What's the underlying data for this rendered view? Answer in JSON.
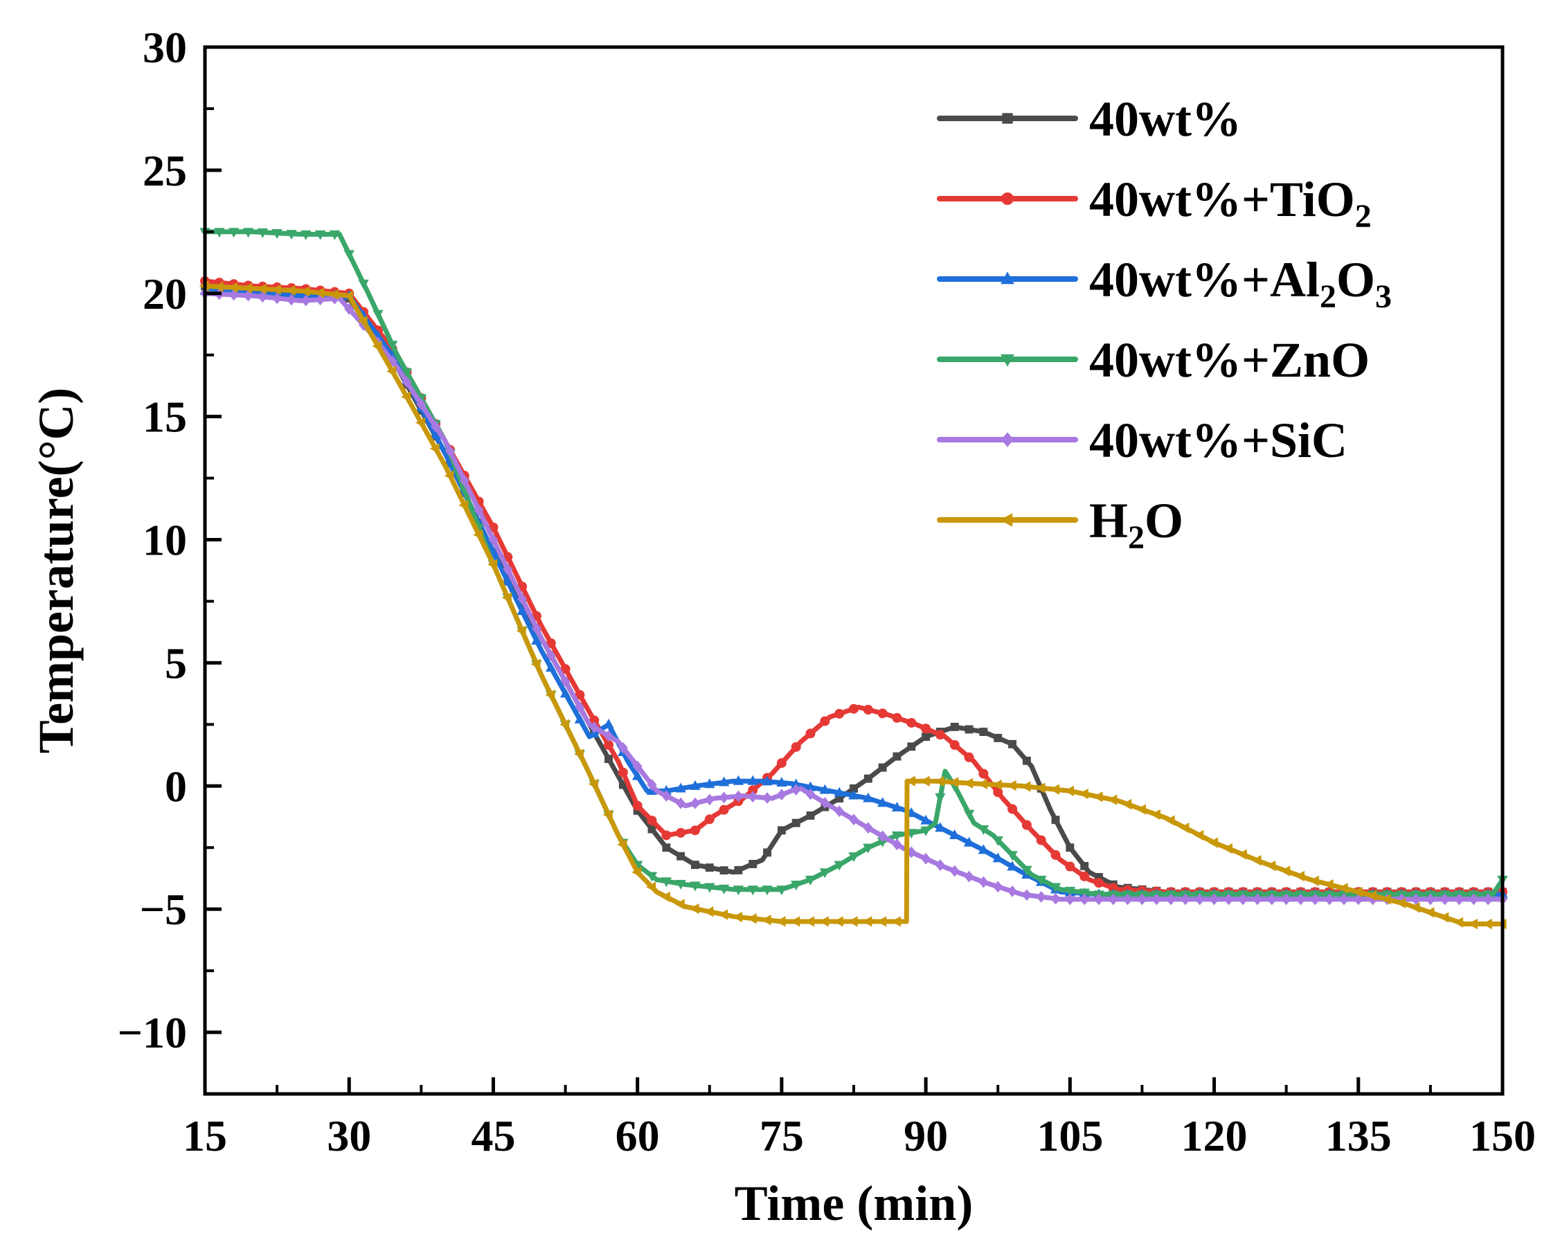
{
  "chart_data": {
    "type": "line",
    "title": "",
    "xlabel": "Time (min)",
    "ylabel": "Temperature(°C)",
    "xlim": [
      15,
      150
    ],
    "ylim": [
      -12.5,
      30
    ],
    "xticks": [
      15,
      30,
      45,
      60,
      75,
      90,
      105,
      120,
      135,
      150
    ],
    "yticks": [
      -10,
      -5,
      0,
      5,
      10,
      15,
      20,
      25,
      30
    ],
    "ytick_labels": [
      "−10",
      "−5",
      "0",
      "5",
      "10",
      "15",
      "20",
      "25",
      "30"
    ],
    "grid": false,
    "legend_position": "top-right",
    "series": [
      {
        "name": "40wt%",
        "label_main": "40wt%",
        "label_parts": [
          [
            "40wt%",
            ""
          ]
        ],
        "color": "#4a4a4a",
        "marker": "square",
        "points": [
          [
            15,
            20.3
          ],
          [
            20,
            20.2
          ],
          [
            25,
            20.0
          ],
          [
            30,
            19.8
          ],
          [
            35,
            17.0
          ],
          [
            40,
            13.5
          ],
          [
            45,
            9.5
          ],
          [
            50,
            6.0
          ],
          [
            55,
            2.5
          ],
          [
            60,
            -1.0
          ],
          [
            63,
            -2.5
          ],
          [
            66,
            -3.2
          ],
          [
            70,
            -3.5
          ],
          [
            73,
            -3.0
          ],
          [
            75,
            -1.8
          ],
          [
            78,
            -1.2
          ],
          [
            81,
            -0.5
          ],
          [
            84,
            0.3
          ],
          [
            87,
            1.2
          ],
          [
            90,
            2.0
          ],
          [
            93,
            2.4
          ],
          [
            96,
            2.2
          ],
          [
            99,
            1.7
          ],
          [
            101,
            0.8
          ],
          [
            103,
            -1.0
          ],
          [
            105,
            -2.5
          ],
          [
            107,
            -3.5
          ],
          [
            110,
            -4.1
          ],
          [
            115,
            -4.3
          ],
          [
            120,
            -4.3
          ],
          [
            130,
            -4.3
          ],
          [
            140,
            -4.3
          ],
          [
            150,
            -4.3
          ]
        ]
      },
      {
        "name": "40wt%+TiO2",
        "label_main": "40wt%+TiO",
        "label_parts": [
          [
            "40wt%+TiO",
            ""
          ],
          [
            "2",
            "sub"
          ]
        ],
        "color": "#e53935",
        "marker": "circle",
        "points": [
          [
            15,
            20.5
          ],
          [
            20,
            20.3
          ],
          [
            25,
            20.2
          ],
          [
            30,
            20.0
          ],
          [
            35,
            17.5
          ],
          [
            40,
            14.0
          ],
          [
            45,
            10.5
          ],
          [
            50,
            6.5
          ],
          [
            55,
            3.0
          ],
          [
            58,
            1.0
          ],
          [
            60,
            -0.8
          ],
          [
            63,
            -2.0
          ],
          [
            66,
            -1.8
          ],
          [
            68,
            -1.2
          ],
          [
            71,
            -0.5
          ],
          [
            74,
            0.5
          ],
          [
            77,
            1.8
          ],
          [
            80,
            2.8
          ],
          [
            83,
            3.2
          ],
          [
            86,
            2.9
          ],
          [
            89,
            2.5
          ],
          [
            92,
            2.0
          ],
          [
            95,
            1.0
          ],
          [
            98,
            -0.5
          ],
          [
            101,
            -1.8
          ],
          [
            104,
            -3.0
          ],
          [
            107,
            -3.8
          ],
          [
            110,
            -4.2
          ],
          [
            115,
            -4.3
          ],
          [
            120,
            -4.3
          ],
          [
            130,
            -4.3
          ],
          [
            140,
            -4.3
          ],
          [
            150,
            -4.3
          ]
        ]
      },
      {
        "name": "40wt%+Al2O3",
        "label_main": "40wt%+Al",
        "label_parts": [
          [
            "40wt%+Al",
            ""
          ],
          [
            "2",
            "sub"
          ],
          [
            "O",
            ""
          ],
          [
            "3",
            "sub"
          ]
        ],
        "color": "#1e6fd9",
        "marker": "triangle-up",
        "points": [
          [
            15,
            20.1
          ],
          [
            20,
            20.0
          ],
          [
            25,
            19.9
          ],
          [
            30,
            19.9
          ],
          [
            35,
            17.2
          ],
          [
            40,
            13.5
          ],
          [
            45,
            9.5
          ],
          [
            50,
            5.5
          ],
          [
            55,
            2.0
          ],
          [
            57,
            2.5
          ],
          [
            59,
            1.0
          ],
          [
            61,
            -0.2
          ],
          [
            63,
            -0.2
          ],
          [
            66,
            0.0
          ],
          [
            70,
            0.2
          ],
          [
            73,
            0.2
          ],
          [
            76,
            0.1
          ],
          [
            80,
            -0.2
          ],
          [
            84,
            -0.5
          ],
          [
            88,
            -1.0
          ],
          [
            92,
            -1.8
          ],
          [
            96,
            -2.6
          ],
          [
            100,
            -3.5
          ],
          [
            104,
            -4.3
          ],
          [
            108,
            -4.4
          ],
          [
            115,
            -4.4
          ],
          [
            120,
            -4.4
          ],
          [
            130,
            -4.4
          ],
          [
            140,
            -4.4
          ],
          [
            150,
            -4.4
          ]
        ]
      },
      {
        "name": "40wt%+ZnO",
        "label_main": "40wt%+ZnO",
        "label_parts": [
          [
            "40wt%+ZnO",
            ""
          ]
        ],
        "color": "#3aa66a",
        "marker": "triangle-down",
        "points": [
          [
            15,
            22.5
          ],
          [
            20,
            22.5
          ],
          [
            25,
            22.4
          ],
          [
            29,
            22.4
          ],
          [
            32,
            20.0
          ],
          [
            35,
            17.5
          ],
          [
            40,
            14.0
          ],
          [
            45,
            9.0
          ],
          [
            50,
            4.5
          ],
          [
            55,
            0.5
          ],
          [
            58,
            -2.0
          ],
          [
            60,
            -3.2
          ],
          [
            62,
            -3.8
          ],
          [
            65,
            -4.0
          ],
          [
            70,
            -4.2
          ],
          [
            75,
            -4.2
          ],
          [
            78,
            -3.8
          ],
          [
            81,
            -3.2
          ],
          [
            84,
            -2.5
          ],
          [
            87,
            -2.0
          ],
          [
            90,
            -1.8
          ],
          [
            91,
            -1.5
          ],
          [
            92,
            0.6
          ],
          [
            93,
            0.0
          ],
          [
            95,
            -1.5
          ],
          [
            97,
            -2.0
          ],
          [
            99,
            -2.8
          ],
          [
            101,
            -3.6
          ],
          [
            104,
            -4.2
          ],
          [
            108,
            -4.4
          ],
          [
            115,
            -4.4
          ],
          [
            120,
            -4.4
          ],
          [
            130,
            -4.4
          ],
          [
            140,
            -4.4
          ],
          [
            149,
            -4.4
          ],
          [
            150,
            -3.8
          ]
        ]
      },
      {
        "name": "40wt%+SiC",
        "label_main": "40wt%+SiC",
        "label_parts": [
          [
            "40wt%+SiC",
            ""
          ]
        ],
        "color": "#a879e0",
        "marker": "diamond",
        "points": [
          [
            15,
            20.0
          ],
          [
            20,
            19.9
          ],
          [
            25,
            19.7
          ],
          [
            29,
            19.8
          ],
          [
            32,
            18.5
          ],
          [
            35,
            17.0
          ],
          [
            40,
            14.0
          ],
          [
            45,
            10.0
          ],
          [
            50,
            6.0
          ],
          [
            55,
            2.5
          ],
          [
            58,
            1.8
          ],
          [
            60,
            0.8
          ],
          [
            62,
            -0.2
          ],
          [
            65,
            -0.8
          ],
          [
            68,
            -0.5
          ],
          [
            71,
            -0.4
          ],
          [
            74,
            -0.5
          ],
          [
            76,
            -0.2
          ],
          [
            77,
            -0.1
          ],
          [
            80,
            -0.8
          ],
          [
            84,
            -1.7
          ],
          [
            88,
            -2.6
          ],
          [
            92,
            -3.3
          ],
          [
            96,
            -3.9
          ],
          [
            100,
            -4.4
          ],
          [
            104,
            -4.6
          ],
          [
            110,
            -4.6
          ],
          [
            120,
            -4.6
          ],
          [
            130,
            -4.6
          ],
          [
            140,
            -4.6
          ],
          [
            150,
            -4.6
          ]
        ]
      },
      {
        "name": "H2O",
        "label_main": "H",
        "label_parts": [
          [
            "H",
            ""
          ],
          [
            "2",
            "sub"
          ],
          [
            "O",
            ""
          ]
        ],
        "color": "#c9980a",
        "marker": "triangle-left",
        "points": [
          [
            15,
            20.3
          ],
          [
            20,
            20.2
          ],
          [
            25,
            20.1
          ],
          [
            30,
            19.9
          ],
          [
            35,
            16.5
          ],
          [
            40,
            13.0
          ],
          [
            45,
            9.0
          ],
          [
            50,
            4.5
          ],
          [
            55,
            0.5
          ],
          [
            58,
            -2.0
          ],
          [
            60,
            -3.5
          ],
          [
            62,
            -4.3
          ],
          [
            65,
            -4.9
          ],
          [
            70,
            -5.3
          ],
          [
            75,
            -5.5
          ],
          [
            80,
            -5.5
          ],
          [
            85,
            -5.5
          ],
          [
            88,
            -5.5
          ],
          [
            88.05,
            0.2
          ],
          [
            91,
            0.2
          ],
          [
            95,
            0.1
          ],
          [
            100,
            0.0
          ],
          [
            105,
            -0.2
          ],
          [
            110,
            -0.6
          ],
          [
            115,
            -1.3
          ],
          [
            120,
            -2.3
          ],
          [
            125,
            -3.1
          ],
          [
            130,
            -3.8
          ],
          [
            135,
            -4.3
          ],
          [
            140,
            -4.8
          ],
          [
            143,
            -5.2
          ],
          [
            146,
            -5.6
          ],
          [
            150,
            -5.6
          ]
        ]
      }
    ]
  }
}
